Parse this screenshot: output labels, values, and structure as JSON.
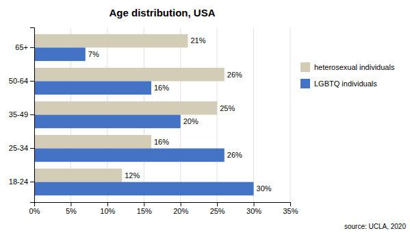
{
  "chart_data": {
    "type": "bar",
    "orientation": "horizontal",
    "title": "Age distribution, USA",
    "categories": [
      "65+",
      "50-64",
      "35-49",
      "25-34",
      "18-24"
    ],
    "series": [
      {
        "name": "heterosexual individuals",
        "color": "#d3cdb8",
        "values": [
          21,
          26,
          25,
          16,
          12
        ],
        "value_labels": [
          "21%",
          "26%",
          "25%",
          "16%",
          "12%"
        ]
      },
      {
        "name": "LGBTQ individuals",
        "color": "#4472c4",
        "values": [
          7,
          16,
          20,
          26,
          30
        ],
        "value_labels": [
          "7%",
          "16%",
          "20%",
          "26%",
          "30%"
        ]
      }
    ],
    "xlim": [
      0,
      35
    ],
    "xticks": [
      {
        "value": 0,
        "label": "0%"
      },
      {
        "value": 5,
        "label": "5%"
      },
      {
        "value": 10,
        "label": "10%"
      },
      {
        "value": 15,
        "label": "15%"
      },
      {
        "value": 20,
        "label": "20%"
      },
      {
        "value": 25,
        "label": "25%"
      },
      {
        "value": 30,
        "label": "30%"
      },
      {
        "value": 35,
        "label": "35%"
      }
    ],
    "grid": true,
    "legend": "right",
    "data_labels": true,
    "annotations": [
      "source: UCLA, 2020"
    ]
  }
}
